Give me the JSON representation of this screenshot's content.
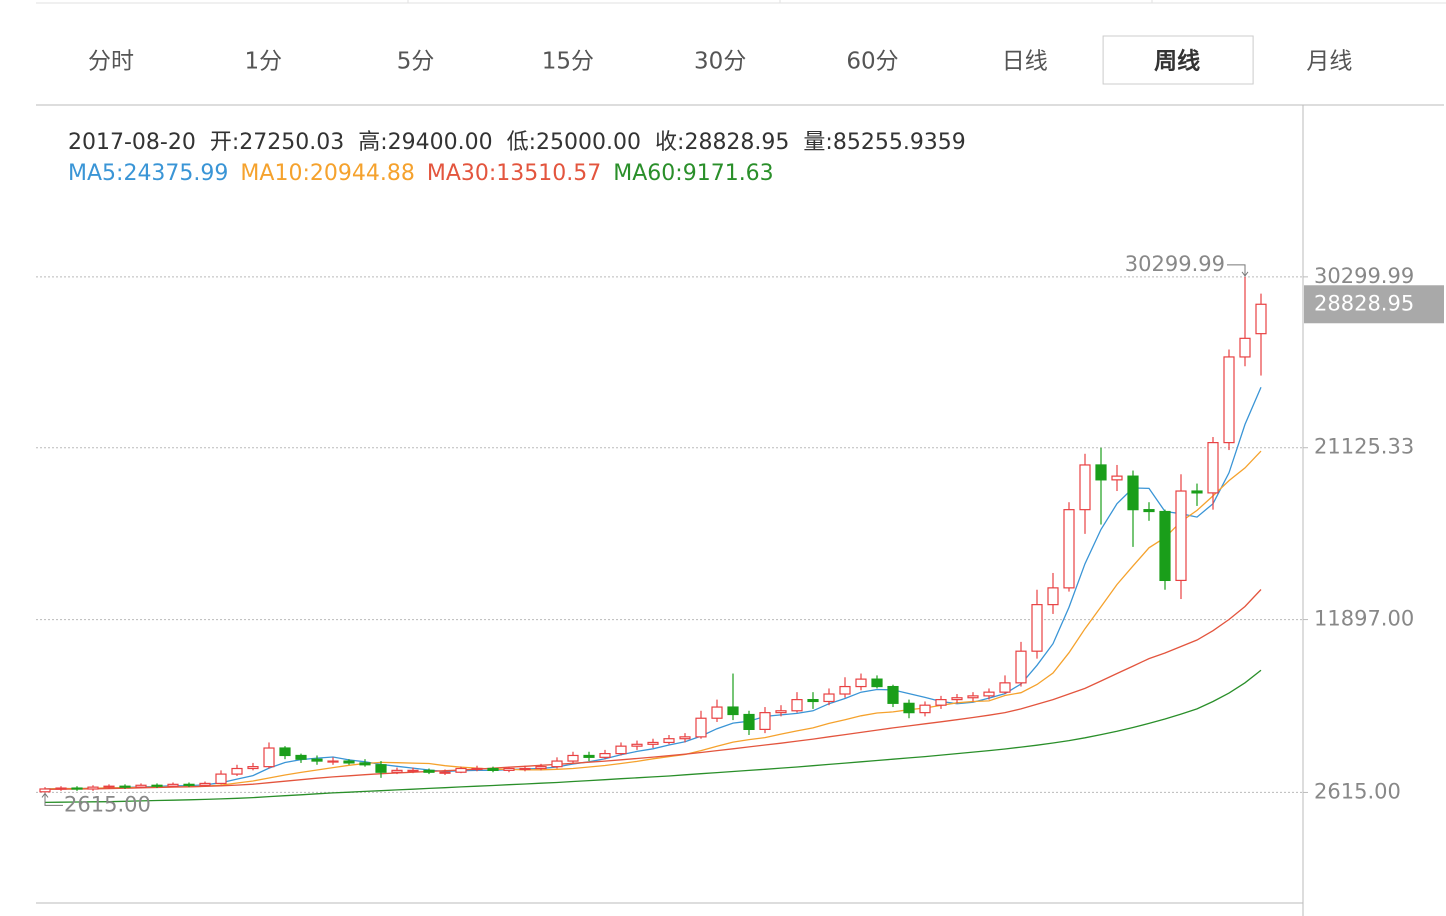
{
  "tabs": {
    "items": [
      "分时",
      "1分",
      "5分",
      "15分",
      "30分",
      "60分",
      "日线",
      "周线",
      "月线"
    ],
    "active": "周线"
  },
  "chart_data": {
    "type": "candlestick",
    "info": {
      "date": "2017-08-20",
      "items": [
        "开:27250.03",
        "高:29400.00",
        "低:25000.00",
        "收:28828.95",
        "量:85255.9359"
      ]
    },
    "open": [
      2650,
      2800,
      2850,
      2800,
      2900,
      2950,
      2900,
      3000,
      2950,
      3050,
      3000,
      3100,
      3600,
      3900,
      4000,
      5000,
      4600,
      4400,
      4300,
      4300,
      4200,
      4100,
      3700,
      3800,
      3800,
      3700,
      3700,
      3900,
      3900,
      3800,
      3900,
      3900,
      4000,
      4300,
      4600,
      4500,
      4700,
      5100,
      5200,
      5300,
      5500,
      5600,
      6600,
      7200,
      6800,
      6000,
      6900,
      7000,
      7600,
      7500,
      7900,
      8300,
      8700,
      8300,
      7400,
      6900,
      7300,
      7600,
      7700,
      7800,
      8000,
      8500,
      10200,
      12700,
      13600,
      17800,
      20200,
      19400,
      19600,
      17800,
      17700,
      14000,
      18800,
      18700,
      21400,
      26000,
      27250.03
    ],
    "high": [
      2900,
      2950,
      2950,
      3000,
      3050,
      3050,
      3100,
      3100,
      3150,
      3150,
      3200,
      3800,
      4100,
      4200,
      5300,
      5100,
      4700,
      4600,
      4500,
      4400,
      4400,
      4300,
      3950,
      3950,
      3900,
      3850,
      4000,
      4050,
      4000,
      4000,
      4050,
      4150,
      4500,
      4800,
      4800,
      4900,
      5300,
      5400,
      5500,
      5700,
      5800,
      7000,
      7600,
      9000,
      7000,
      7200,
      7300,
      8000,
      8000,
      8200,
      8800,
      9000,
      8900,
      8400,
      7600,
      7500,
      7800,
      7900,
      8000,
      8200,
      8900,
      10700,
      13500,
      14400,
      18200,
      20800,
      21125,
      20200,
      19900,
      18200,
      17800,
      19700,
      19200,
      21700,
      26400,
      30299.99,
      29400
    ],
    "low": [
      2615,
      2700,
      2700,
      2700,
      2800,
      2800,
      2850,
      2850,
      2900,
      2900,
      2950,
      3050,
      3500,
      3800,
      3900,
      4400,
      4200,
      4100,
      4100,
      4100,
      4000,
      3400,
      3600,
      3650,
      3600,
      3550,
      3650,
      3750,
      3700,
      3700,
      3750,
      3800,
      3900,
      4200,
      4300,
      4400,
      4600,
      4900,
      5000,
      5200,
      5300,
      5500,
      6400,
      6500,
      5700,
      5800,
      6700,
      6900,
      7100,
      7300,
      7700,
      8100,
      8200,
      7200,
      6600,
      6700,
      7100,
      7400,
      7500,
      7600,
      7900,
      8300,
      9800,
      12200,
      13400,
      16500,
      17000,
      18800,
      15800,
      17200,
      13500,
      13000,
      18000,
      17800,
      21000,
      25500,
      25000
    ],
    "close": [
      2800,
      2850,
      2800,
      2900,
      2950,
      2900,
      3000,
      2950,
      3050,
      3000,
      3100,
      3600,
      3900,
      4000,
      5000,
      4600,
      4400,
      4300,
      4300,
      4200,
      4100,
      3700,
      3800,
      3800,
      3700,
      3700,
      3900,
      3900,
      3800,
      3900,
      3900,
      4000,
      4300,
      4600,
      4500,
      4700,
      5100,
      5200,
      5300,
      5500,
      5600,
      6600,
      7200,
      6800,
      6000,
      6900,
      7000,
      7600,
      7500,
      7900,
      8300,
      8700,
      8300,
      7400,
      6900,
      7300,
      7600,
      7700,
      7800,
      8000,
      8500,
      10200,
      12700,
      13600,
      17800,
      20200,
      19400,
      19600,
      17800,
      17700,
      14000,
      18800,
      18700,
      21400,
      26000,
      27000,
      28828.95
    ],
    "up_color": "#e84142",
    "down_color": "#1a9e1a",
    "series": [
      {
        "name": "MA5:24375.99",
        "color": "#3a95d6",
        "values": [
          2800,
          2825,
          2817,
          2838,
          2860,
          2880,
          2910,
          2940,
          2970,
          2980,
          3020,
          3140,
          3330,
          3520,
          3920,
          4220,
          4380,
          4460,
          4520,
          4360,
          4260,
          4120,
          4020,
          3920,
          3820,
          3740,
          3780,
          3800,
          3800,
          3840,
          3880,
          3900,
          3980,
          4140,
          4260,
          4420,
          4640,
          4820,
          4960,
          5160,
          5340,
          5640,
          6040,
          6340,
          6440,
          6700,
          6780,
          6860,
          7000,
          7380,
          7660,
          8000,
          8140,
          8120,
          7920,
          7720,
          7500,
          7380,
          7460,
          7680,
          7920,
          8440,
          9440,
          10600,
          12560,
          14900,
          16740,
          18120,
          18960,
          18940,
          17700,
          17580,
          17400,
          18120,
          19780,
          22380,
          24375.99
        ]
      },
      {
        "name": "MA10:20944.88",
        "color": "#f5a22d",
        "values": [
          2800,
          2825,
          2817,
          2838,
          2860,
          2867,
          2886,
          2894,
          2911,
          2920,
          2950,
          3010,
          3120,
          3230,
          3390,
          3550,
          3690,
          3820,
          3950,
          4070,
          4170,
          4230,
          4210,
          4190,
          4170,
          4050,
          3970,
          3920,
          3870,
          3850,
          3830,
          3830,
          3860,
          3900,
          3980,
          4060,
          4170,
          4280,
          4420,
          4540,
          4650,
          4860,
          5100,
          5320,
          5450,
          5560,
          5750,
          5920,
          6080,
          6320,
          6520,
          6730,
          6880,
          6940,
          7060,
          7150,
          7290,
          7430,
          7500,
          7530,
          7820,
          7970,
          8410,
          9030,
          10120,
          11410,
          12590,
          13780,
          14780,
          15750,
          16300,
          17160,
          17760,
          18540,
          19360,
          20040,
          20944.88
        ]
      },
      {
        "name": "MA30:13510.57",
        "color": "#e3553e",
        "values": [
          2780,
          2790,
          2800,
          2810,
          2820,
          2840,
          2860,
          2880,
          2900,
          2920,
          2940,
          2970,
          3010,
          3060,
          3140,
          3220,
          3300,
          3380,
          3450,
          3510,
          3570,
          3620,
          3660,
          3700,
          3740,
          3780,
          3820,
          3870,
          3920,
          3970,
          4020,
          4070,
          4120,
          4180,
          4240,
          4300,
          4370,
          4440,
          4510,
          4590,
          4670,
          4760,
          4860,
          4960,
          5060,
          5160,
          5260,
          5370,
          5480,
          5600,
          5720,
          5840,
          5960,
          6080,
          6190,
          6300,
          6410,
          6520,
          6640,
          6760,
          6900,
          7100,
          7350,
          7600,
          7900,
          8200,
          8600,
          9000,
          9400,
          9800,
          10100,
          10450,
          10800,
          11300,
          11900,
          12600,
          13510.57
        ]
      },
      {
        "name": "MA60:9171.63",
        "color": "#2a8f2a",
        "values": [
          2080,
          2090,
          2100,
          2110,
          2120,
          2140,
          2160,
          2180,
          2200,
          2220,
          2240,
          2270,
          2300,
          2340,
          2390,
          2440,
          2490,
          2540,
          2590,
          2630,
          2670,
          2710,
          2750,
          2790,
          2830,
          2870,
          2910,
          2950,
          2990,
          3030,
          3070,
          3110,
          3150,
          3200,
          3250,
          3300,
          3350,
          3400,
          3450,
          3500,
          3560,
          3620,
          3680,
          3740,
          3800,
          3860,
          3920,
          3980,
          4050,
          4120,
          4190,
          4260,
          4330,
          4400,
          4470,
          4540,
          4620,
          4700,
          4780,
          4860,
          4950,
          5050,
          5150,
          5270,
          5400,
          5550,
          5720,
          5900,
          6100,
          6320,
          6560,
          6820,
          7100,
          7500,
          7950,
          8500,
          9171.63
        ]
      }
    ],
    "ylim": [
      -3322,
      39529
    ],
    "yticks": [
      {
        "value": 2615,
        "label": "2615.00"
      },
      {
        "value": 11897,
        "label": "11897.00"
      },
      21125.33,
      30299.99
    ],
    "grid": true,
    "max_label": "30299.99",
    "min_label": "2615.00",
    "last_price_label": "28828.95"
  }
}
